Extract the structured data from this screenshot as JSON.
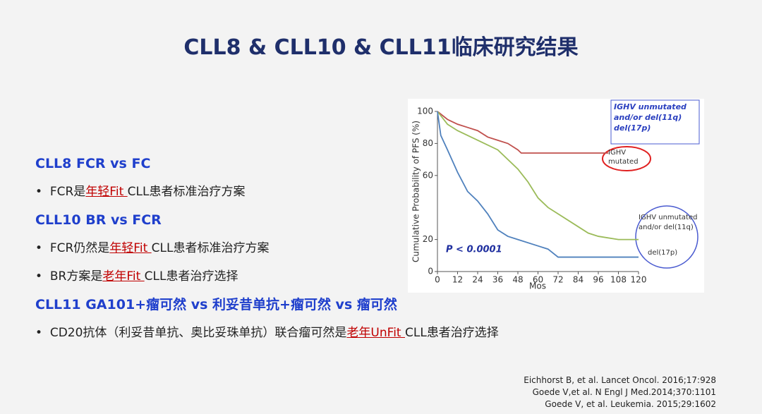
{
  "title": "CLL8 & CLL10 & CLL11临床研究结果",
  "sections": [
    {
      "heading": "CLL8  FCR vs FC",
      "bullets": [
        {
          "before": "FCR是",
          "highlight": "年轻Fit ",
          "after": "CLL患者标准治疗方案"
        }
      ]
    },
    {
      "heading": "CLL10  BR vs FCR",
      "bullets": [
        {
          "before": "FCR仍然是",
          "highlight": "年轻Fit ",
          "after": "CLL患者标准治疗方案"
        },
        {
          "before": "BR方案是",
          "highlight": "老年Fit ",
          "after": "CLL患者治疗选择"
        }
      ]
    },
    {
      "heading": "CLL11  GA101+瘤可然 vs 利妥昔单抗+瘤可然 vs 瘤可然",
      "bullets": [
        {
          "before": "CD20抗体（利妥昔单抗、奥比妥珠单抗）联合瘤可然是",
          "highlight": "老年UnFit ",
          "after": "CLL患者治疗选择"
        }
      ]
    }
  ],
  "chart_data": {
    "type": "line",
    "ylabel": "Cumulative Probability of PFS (%)",
    "xlabel": "Mos",
    "xlim": [
      0,
      120
    ],
    "xticks": [
      0,
      12,
      24,
      36,
      48,
      60,
      72,
      84,
      96,
      108,
      120
    ],
    "ylim": [
      0,
      100
    ],
    "yticks": [
      0,
      20,
      60,
      80,
      100
    ],
    "box_text": "IGHV unmutated and/or del(11q) del(17p)",
    "p_value": "P < 0.0001",
    "series": [
      {
        "name": "IGHV mutated",
        "color": "#c0504d",
        "x": [
          0,
          6,
          12,
          18,
          24,
          30,
          36,
          42,
          48,
          50,
          60,
          72,
          96,
          102
        ],
        "values": [
          100,
          95,
          92,
          90,
          88,
          84,
          82,
          80,
          76,
          74,
          74,
          74,
          74,
          74
        ]
      },
      {
        "name": "IGHV unmutated and/or del(11q)",
        "color": "#9bbb59",
        "x": [
          0,
          6,
          12,
          24,
          36,
          48,
          54,
          60,
          66,
          72,
          84,
          90,
          96,
          108,
          120
        ],
        "values": [
          100,
          92,
          88,
          82,
          76,
          64,
          56,
          46,
          40,
          36,
          28,
          24,
          22,
          20,
          20
        ]
      },
      {
        "name": "del(17p)",
        "color": "#4f81bd",
        "x": [
          0,
          2,
          6,
          12,
          18,
          24,
          30,
          36,
          42,
          48,
          60,
          66,
          72,
          84,
          108,
          120
        ],
        "values": [
          100,
          85,
          76,
          62,
          50,
          44,
          36,
          26,
          22,
          20,
          16,
          14,
          9,
          9,
          9,
          9
        ]
      }
    ]
  },
  "references": [
    "Eichhorst B, et al. Lancet Oncol. 2016;17:928",
    "Goede V,et al. N Engl J Med.2014;370:1101",
    "Goede V, et al. Leukemia. 2015;29:1602"
  ]
}
